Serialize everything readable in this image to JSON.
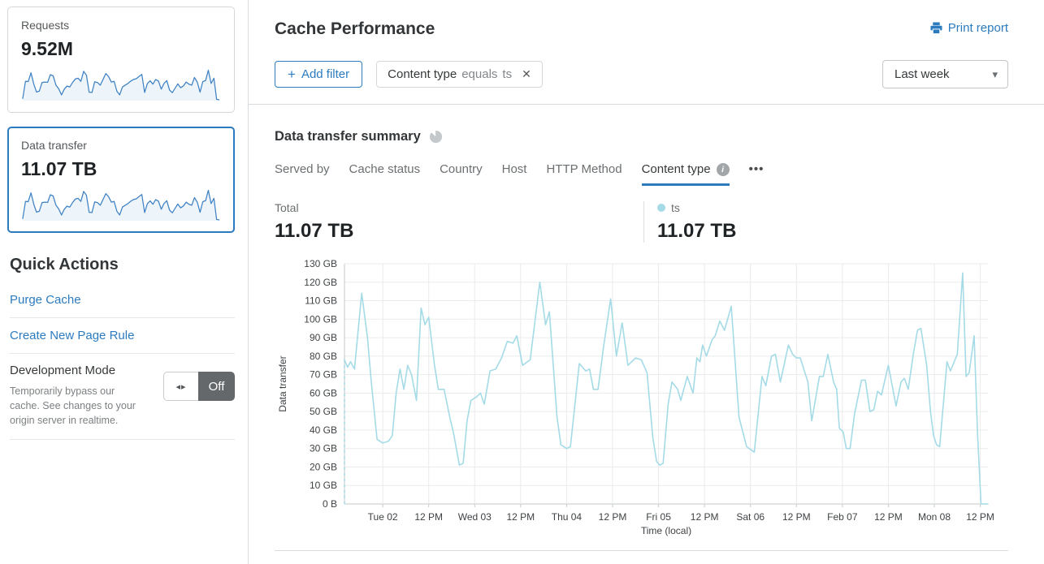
{
  "icons": {
    "plus": "+",
    "close": "✕",
    "caret": "▾",
    "ellipsis": "•••",
    "toggle_arrows": "◂▸",
    "info": "i"
  },
  "sidebar": {
    "cards": [
      {
        "label": "Requests",
        "value": "9.52M",
        "selected": false,
        "color": "#3e82c4",
        "fill": "#edf4fa",
        "sparkline": [
          4,
          78,
          77,
          114,
          66,
          33,
          37,
          73,
          75,
          74,
          106,
          101,
          62,
          47,
          21,
          45,
          58,
          54,
          73,
          88,
          91,
          78,
          120,
          104,
          32,
          31,
          76,
          73,
          62,
          86,
          111,
          98,
          75,
          78,
          36,
          21,
          54,
          62,
          69,
          79,
          86,
          89,
          99,
          107,
          31,
          69,
          80,
          66,
          86,
          79,
          45,
          69,
          81,
          41,
          30,
          49,
          67,
          51,
          59,
          75,
          66,
          62,
          94,
          75,
          32,
          77,
          81,
          125,
          69,
          91,
          2,
          0
        ]
      },
      {
        "label": "Data transfer",
        "value": "11.07 TB",
        "selected": true,
        "color": "#3e82c4",
        "fill": "#edf4fa",
        "sparkline": [
          4,
          78,
          77,
          114,
          66,
          33,
          37,
          73,
          75,
          74,
          106,
          101,
          62,
          47,
          21,
          45,
          58,
          54,
          73,
          88,
          91,
          78,
          120,
          104,
          32,
          31,
          76,
          73,
          62,
          86,
          111,
          98,
          75,
          78,
          36,
          21,
          54,
          62,
          69,
          79,
          86,
          89,
          99,
          107,
          31,
          69,
          80,
          66,
          86,
          79,
          45,
          69,
          81,
          41,
          30,
          49,
          67,
          51,
          59,
          75,
          66,
          62,
          94,
          75,
          32,
          77,
          81,
          125,
          69,
          91,
          2,
          0
        ]
      }
    ],
    "quick_actions": {
      "title": "Quick Actions",
      "links": [
        "Purge Cache",
        "Create New Page Rule"
      ],
      "dev_mode": {
        "title": "Development Mode",
        "description": "Temporarily bypass our cache. See changes to your origin server in realtime.",
        "state": "Off"
      }
    }
  },
  "header": {
    "title": "Cache Performance",
    "print_report": "Print report",
    "add_filter_label": "Add filter",
    "filter_chip": {
      "field": "Content type",
      "operator": "equals",
      "value": "ts"
    },
    "time_range": "Last week"
  },
  "summary": {
    "title": "Data transfer summary",
    "tabs": [
      {
        "label": "Served by",
        "active": false
      },
      {
        "label": "Cache status",
        "active": false
      },
      {
        "label": "Country",
        "active": false
      },
      {
        "label": "Host",
        "active": false
      },
      {
        "label": "HTTP Method",
        "active": false
      },
      {
        "label": "Content type",
        "active": true,
        "has_info": true
      },
      {
        "label": "•••",
        "active": false,
        "more": true
      }
    ],
    "total_label": "Total",
    "total_value": "11.07 TB",
    "legend": {
      "label": "ts",
      "value": "11.07 TB"
    }
  },
  "chart_data": {
    "type": "line",
    "title": "Data transfer summary",
    "xlabel": "Time (local)",
    "ylabel": "Data transfer",
    "x_range_hours": [
      0,
      168
    ],
    "ylim": [
      0,
      130
    ],
    "ytick_step": 10,
    "ytick_labels": [
      "0 B",
      "10 GB",
      "20 GB",
      "30 GB",
      "40 GB",
      "50 GB",
      "60 GB",
      "70 GB",
      "80 GB",
      "90 GB",
      "100 GB",
      "110 GB",
      "120 GB",
      "130 GB"
    ],
    "xticks": [
      {
        "hour": 10,
        "label": "Tue 02"
      },
      {
        "hour": 22,
        "label": "12 PM"
      },
      {
        "hour": 34,
        "label": "Wed 03"
      },
      {
        "hour": 46,
        "label": "12 PM"
      },
      {
        "hour": 58,
        "label": "Thu 04"
      },
      {
        "hour": 70,
        "label": "12 PM"
      },
      {
        "hour": 82,
        "label": "Fri 05"
      },
      {
        "hour": 94,
        "label": "12 PM"
      },
      {
        "hour": 106,
        "label": "Sat 06"
      },
      {
        "hour": 118,
        "label": "12 PM"
      },
      {
        "hour": 130,
        "label": "Feb 07"
      },
      {
        "hour": 142,
        "label": "12 PM"
      },
      {
        "hour": 154,
        "label": "Mon 08"
      },
      {
        "hour": 166,
        "label": "12 PM"
      }
    ],
    "grid": true,
    "start_dashed_from_zero": true,
    "series": [
      {
        "name": "ts",
        "color": "#a4dbe6",
        "unit": "GB",
        "points": [
          [
            0,
            78
          ],
          [
            0.8,
            74
          ],
          [
            1.6,
            77
          ],
          [
            2.6,
            73
          ],
          [
            4.5,
            114
          ],
          [
            6,
            90
          ],
          [
            7,
            66
          ],
          [
            8.5,
            35
          ],
          [
            10,
            33
          ],
          [
            11.5,
            34
          ],
          [
            12.5,
            37
          ],
          [
            13.5,
            60
          ],
          [
            14.5,
            73
          ],
          [
            15.5,
            62
          ],
          [
            16.5,
            75
          ],
          [
            17.5,
            70
          ],
          [
            18.8,
            56
          ],
          [
            20,
            106
          ],
          [
            21,
            97
          ],
          [
            22,
            101
          ],
          [
            23.5,
            75
          ],
          [
            24.5,
            62
          ],
          [
            26,
            62
          ],
          [
            27.5,
            47
          ],
          [
            28.5,
            38
          ],
          [
            30,
            21
          ],
          [
            31,
            22
          ],
          [
            32,
            45
          ],
          [
            33,
            56
          ],
          [
            34.5,
            58
          ],
          [
            35.5,
            60
          ],
          [
            36.5,
            54
          ],
          [
            38,
            72
          ],
          [
            39.5,
            73
          ],
          [
            41,
            79
          ],
          [
            42.5,
            88
          ],
          [
            44,
            87
          ],
          [
            45,
            91
          ],
          [
            46.5,
            75
          ],
          [
            48.5,
            78
          ],
          [
            51,
            120
          ],
          [
            52.5,
            97
          ],
          [
            53.5,
            104
          ],
          [
            55.5,
            47
          ],
          [
            56.5,
            32
          ],
          [
            58,
            30
          ],
          [
            59,
            31
          ],
          [
            61.3,
            76
          ],
          [
            63,
            72
          ],
          [
            64,
            73
          ],
          [
            65,
            62
          ],
          [
            66.2,
            62
          ],
          [
            67.7,
            86
          ],
          [
            69.5,
            111
          ],
          [
            71,
            80
          ],
          [
            72.5,
            98
          ],
          [
            74,
            75
          ],
          [
            76,
            79
          ],
          [
            77.5,
            78
          ],
          [
            79,
            71
          ],
          [
            80.5,
            36
          ],
          [
            81.5,
            23
          ],
          [
            82.3,
            21
          ],
          [
            83.2,
            22
          ],
          [
            84.5,
            54
          ],
          [
            85.5,
            66
          ],
          [
            87,
            62
          ],
          [
            87.8,
            56
          ],
          [
            89.5,
            69
          ],
          [
            91,
            60
          ],
          [
            92,
            79
          ],
          [
            92.8,
            77
          ],
          [
            93.5,
            86
          ],
          [
            94.5,
            80
          ],
          [
            96,
            89
          ],
          [
            96.8,
            91
          ],
          [
            98,
            99
          ],
          [
            99.2,
            94
          ],
          [
            101,
            107
          ],
          [
            103,
            47
          ],
          [
            105,
            31
          ],
          [
            107,
            28
          ],
          [
            109,
            69
          ],
          [
            110,
            64
          ],
          [
            111.5,
            80
          ],
          [
            112.5,
            81
          ],
          [
            113.8,
            66
          ],
          [
            115.9,
            86
          ],
          [
            117,
            81
          ],
          [
            118,
            79
          ],
          [
            119,
            79
          ],
          [
            121,
            66
          ],
          [
            122,
            45
          ],
          [
            124,
            69
          ],
          [
            125,
            69
          ],
          [
            126.2,
            81
          ],
          [
            127.7,
            66
          ],
          [
            128.5,
            62
          ],
          [
            129.2,
            41
          ],
          [
            130.2,
            39
          ],
          [
            131,
            30
          ],
          [
            132,
            30
          ],
          [
            133.2,
            49
          ],
          [
            135,
            67
          ],
          [
            136,
            67
          ],
          [
            137.2,
            50
          ],
          [
            138.2,
            51
          ],
          [
            139.2,
            61
          ],
          [
            140.2,
            59
          ],
          [
            142,
            75
          ],
          [
            144,
            53
          ],
          [
            145.3,
            66
          ],
          [
            146.2,
            68
          ],
          [
            147.2,
            62
          ],
          [
            148.5,
            81
          ],
          [
            149.6,
            94
          ],
          [
            150.5,
            95
          ],
          [
            152,
            75
          ],
          [
            153,
            50
          ],
          [
            153.8,
            37
          ],
          [
            154.6,
            32
          ],
          [
            155.4,
            31
          ],
          [
            157.3,
            77
          ],
          [
            158.2,
            72
          ],
          [
            160,
            81
          ],
          [
            161.4,
            125
          ],
          [
            162.3,
            69
          ],
          [
            163.1,
            71
          ],
          [
            164.4,
            91
          ],
          [
            165.3,
            37
          ],
          [
            166.2,
            0
          ],
          [
            168,
            0
          ]
        ]
      }
    ]
  }
}
